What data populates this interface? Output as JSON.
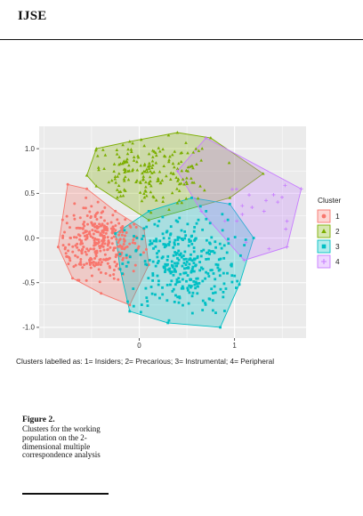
{
  "header": {
    "journal": "IJSE"
  },
  "caption_line": "Clusters labelled as: 1= Insiders; 2= Precarious; 3= Instrumental; 4= Peripheral",
  "figure": {
    "label": "Figure 2.",
    "text": "Clusters for the working population on the 2-dimensional multiple correspondence analysis"
  },
  "chart_data": {
    "type": "scatter",
    "title": "",
    "xlabel": "",
    "ylabel": "",
    "xlim": [
      -1.05,
      1.75
    ],
    "ylim": [
      -1.12,
      1.25
    ],
    "x_ticks": [
      0,
      1
    ],
    "y_ticks": [
      1.0,
      0.5,
      0.0,
      -0.5,
      -1.0
    ],
    "x_tick_labels": [
      "0",
      "1"
    ],
    "y_tick_labels": [
      "1.0",
      "0.5",
      "0.0",
      "-0.5",
      "-1.0"
    ],
    "grid": true,
    "legend": {
      "title": "Cluster",
      "position": "right"
    },
    "series": [
      {
        "name": "1",
        "color": "#F8766D",
        "marker": "circle",
        "hull": [
          [
            -0.75,
            0.6
          ],
          [
            -0.55,
            0.55
          ],
          [
            -0.25,
            0.3
          ],
          [
            0.05,
            0.1
          ],
          [
            0.1,
            -0.3
          ],
          [
            -0.1,
            -0.75
          ],
          [
            -0.4,
            -0.62
          ],
          [
            -0.7,
            -0.45
          ],
          [
            -0.85,
            -0.1
          ]
        ],
        "center": [
          -0.42,
          -0.05
        ],
        "spread": [
          0.22,
          0.2
        ],
        "count": 320
      },
      {
        "name": "2",
        "color": "#7CAE00",
        "marker": "triangle",
        "hull": [
          [
            -0.45,
            1.0
          ],
          [
            -0.1,
            1.08
          ],
          [
            0.4,
            1.18
          ],
          [
            0.75,
            1.12
          ],
          [
            1.3,
            0.72
          ],
          [
            0.95,
            0.45
          ],
          [
            0.1,
            0.2
          ],
          [
            -0.45,
            0.58
          ],
          [
            -0.55,
            0.7
          ]
        ],
        "center": [
          0.1,
          0.72
        ],
        "spread": [
          0.35,
          0.18
        ],
        "count": 190
      },
      {
        "name": "3",
        "color": "#00BFC4",
        "marker": "square",
        "hull": [
          [
            -0.25,
            0.05
          ],
          [
            0.1,
            0.3
          ],
          [
            0.55,
            0.45
          ],
          [
            0.95,
            0.38
          ],
          [
            1.2,
            0.0
          ],
          [
            1.05,
            -0.52
          ],
          [
            0.85,
            -1.0
          ],
          [
            0.3,
            -0.95
          ],
          [
            -0.1,
            -0.82
          ],
          [
            -0.2,
            -0.35
          ]
        ],
        "center": [
          0.45,
          -0.3
        ],
        "spread": [
          0.3,
          0.28
        ],
        "count": 330
      },
      {
        "name": "4",
        "color": "#C77CFF",
        "marker": "plus",
        "hull": [
          [
            0.7,
            1.12
          ],
          [
            1.7,
            0.55
          ],
          [
            1.55,
            -0.1
          ],
          [
            1.1,
            -0.25
          ],
          [
            0.65,
            0.3
          ],
          [
            0.4,
            0.75
          ]
        ],
        "center": [
          1.25,
          0.35
        ],
        "spread": [
          0.22,
          0.18
        ],
        "count": 18
      }
    ]
  }
}
